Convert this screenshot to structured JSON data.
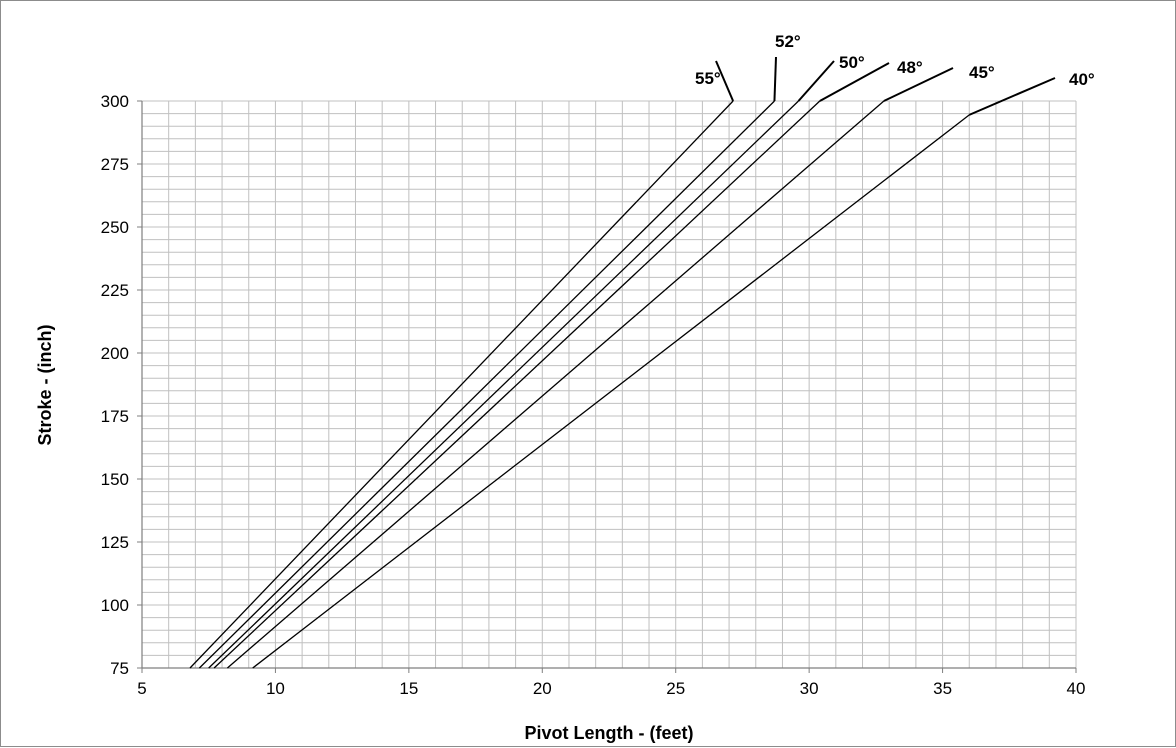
{
  "chart_data": {
    "type": "line",
    "title": "",
    "xlabel": "Pivot Length - (feet)",
    "ylabel": "Stroke - (inch)",
    "xlim": [
      5,
      40
    ],
    "ylim": [
      75,
      300
    ],
    "x_ticks": [
      "5",
      "10",
      "15",
      "20",
      "25",
      "30",
      "35",
      "40"
    ],
    "y_ticks": [
      "75",
      "100",
      "125",
      "150",
      "175",
      "200",
      "225",
      "250",
      "275",
      "300"
    ],
    "grid": true,
    "line_color": "#000000",
    "grid_color": "#c0c0c0",
    "series": [
      {
        "name": "55°",
        "x": [
          6.8,
          27.15
        ],
        "y": [
          75,
          300
        ]
      },
      {
        "name": "52°",
        "x": [
          7.15,
          28.7
        ],
        "y": [
          75,
          300
        ]
      },
      {
        "name": "50°",
        "x": [
          7.5,
          29.6
        ],
        "y": [
          75,
          300
        ]
      },
      {
        "name": "48°",
        "x": [
          7.7,
          30.4
        ],
        "y": [
          75,
          300
        ]
      },
      {
        "name": "45°",
        "x": [
          8.2,
          32.8
        ],
        "y": [
          75,
          300
        ]
      },
      {
        "name": "40°",
        "x": [
          9.15,
          36.0
        ],
        "y": [
          75,
          294.5
        ]
      }
    ]
  }
}
